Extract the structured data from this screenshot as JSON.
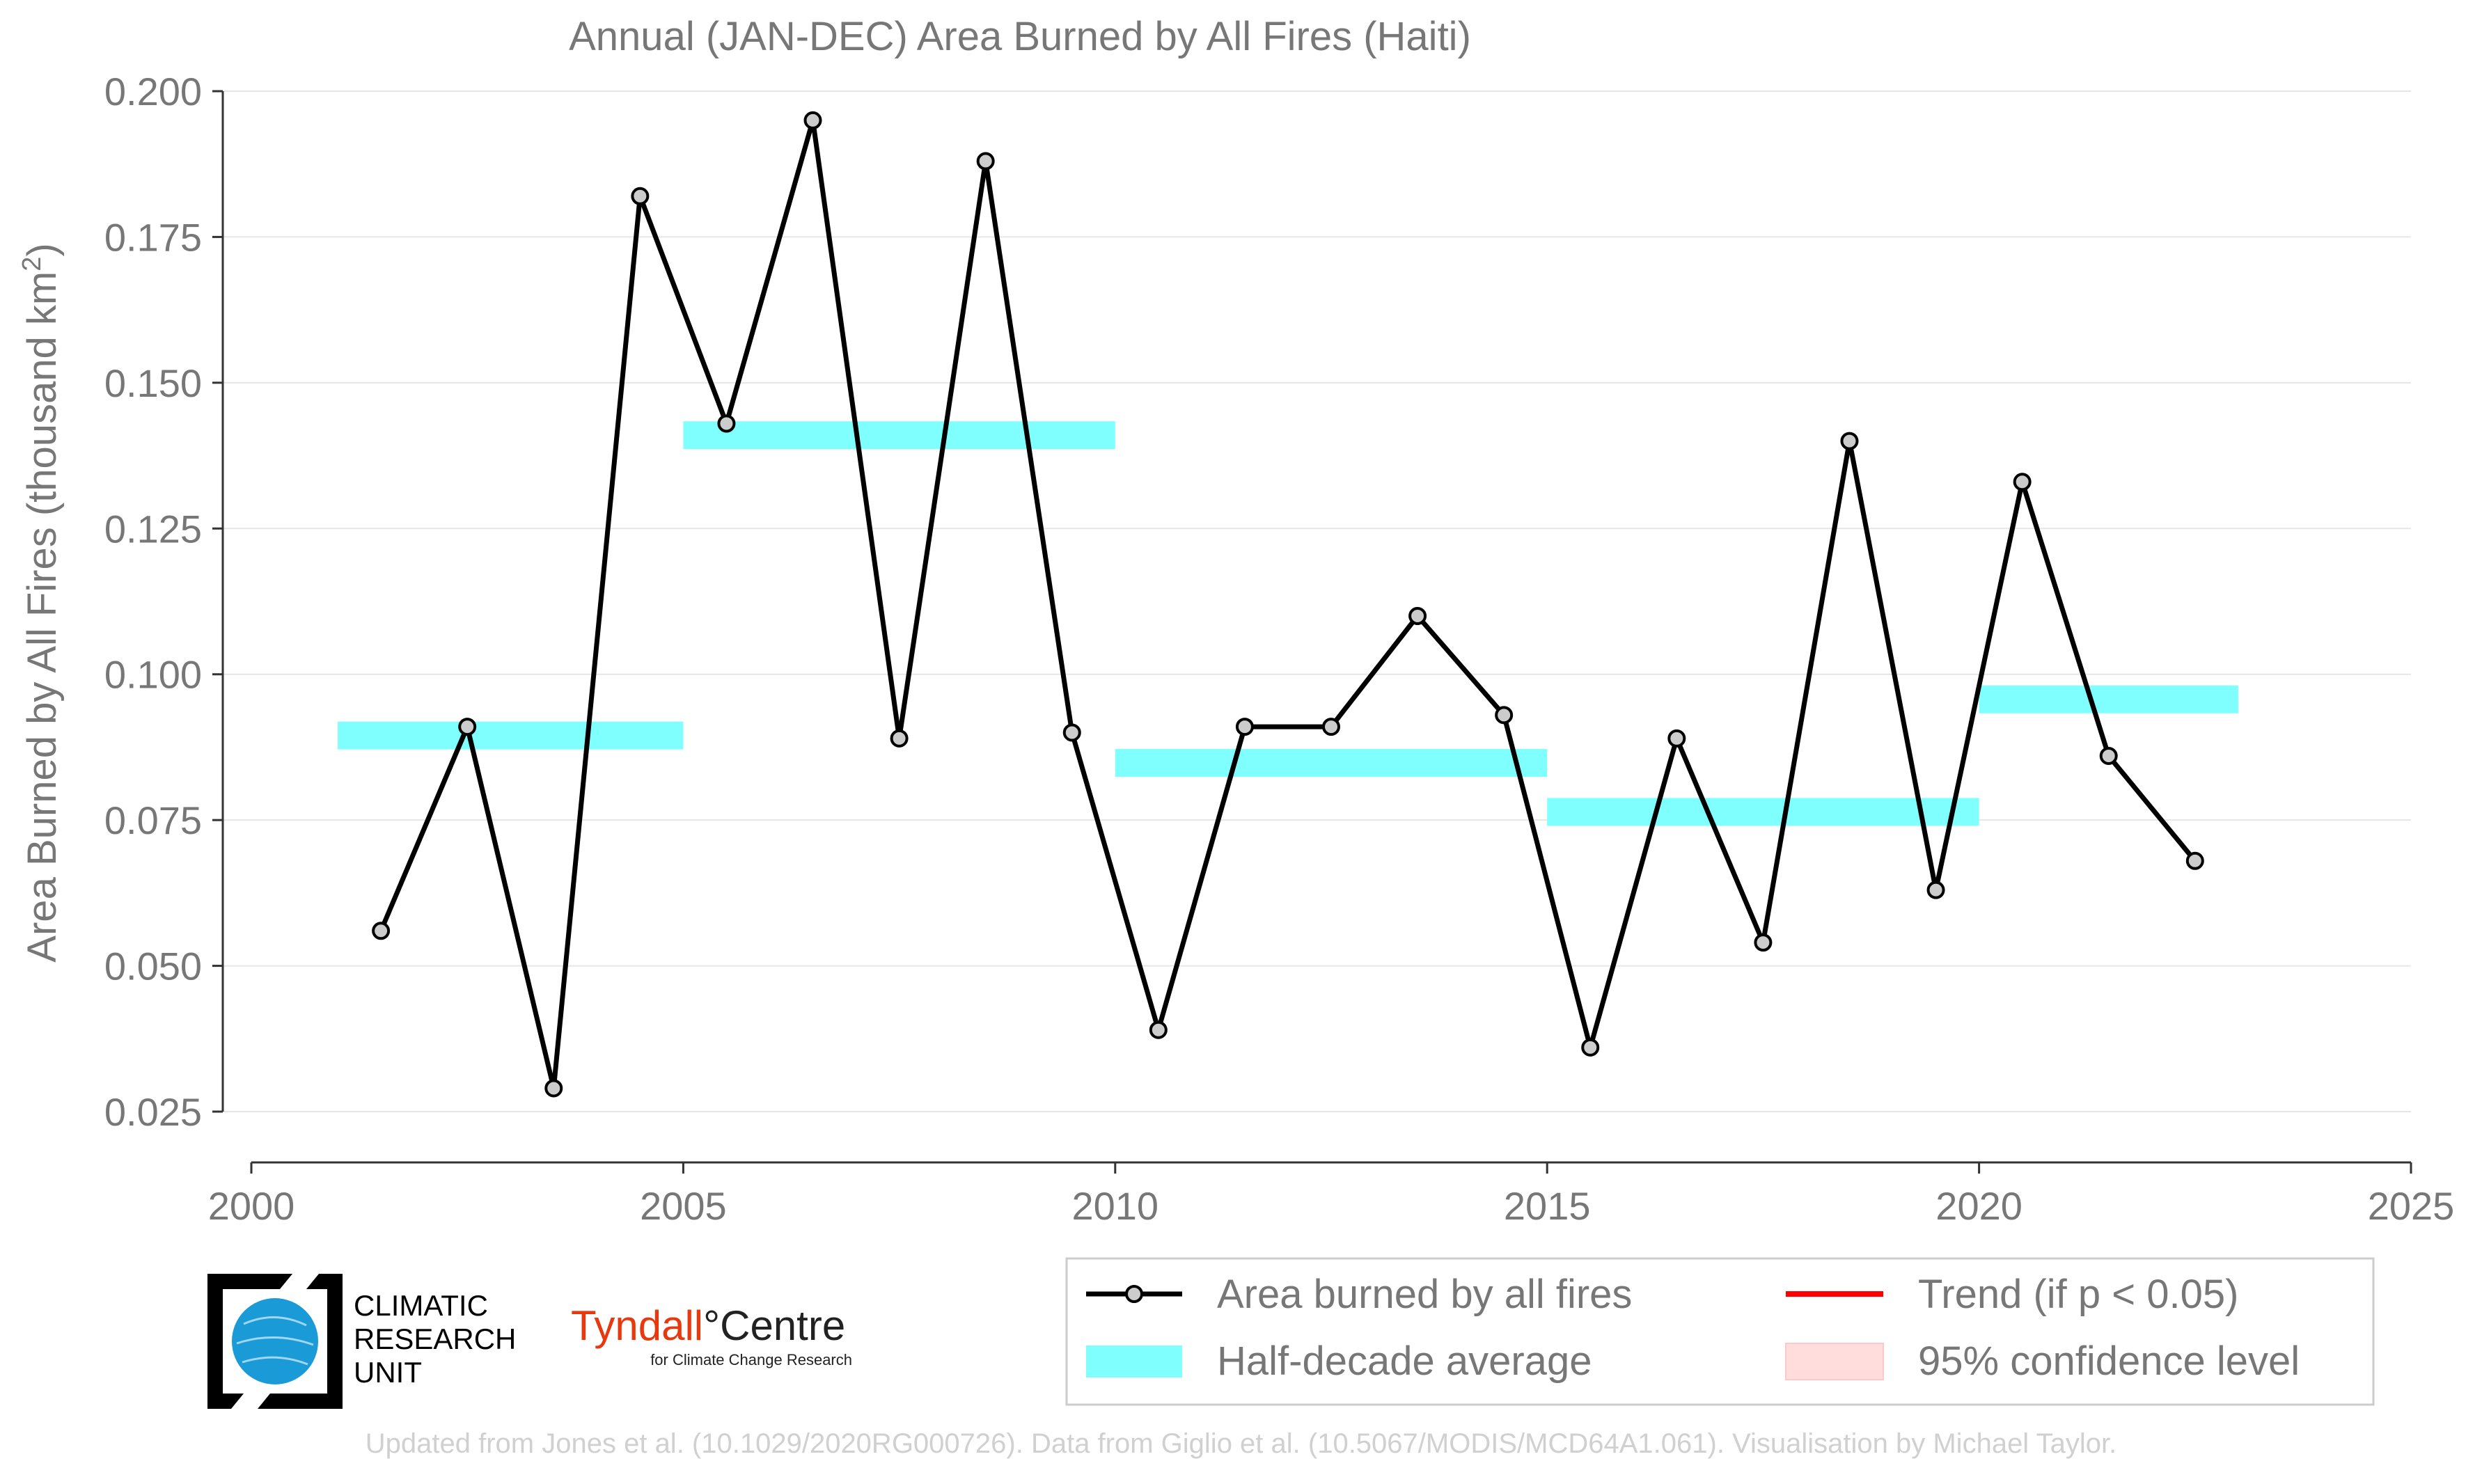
{
  "chart_data": {
    "type": "line",
    "title": "Annual (JAN-DEC) Area Burned by All Fires (Haiti)",
    "xlabel": "",
    "ylabel": "Area Burned by All Fires (thousand km",
    "ylabel_sup": "2",
    "ylabel_end": ")",
    "xlim": [
      2000,
      2025
    ],
    "ylim": [
      0.025,
      0.2
    ],
    "x_ticks": [
      2000,
      2005,
      2010,
      2015,
      2020,
      2025
    ],
    "x_tick_labels": [
      "2000",
      "2005",
      "2010",
      "2015",
      "2020",
      "2025"
    ],
    "y_ticks": [
      0.025,
      0.05,
      0.075,
      0.1,
      0.125,
      0.15,
      0.175,
      0.2
    ],
    "y_tick_labels": [
      "0.025",
      "0.050",
      "0.075",
      "0.100",
      "0.125",
      "0.150",
      "0.175",
      "0.200"
    ],
    "grid": "horizontal",
    "series": [
      {
        "name": "Area burned by all fires",
        "color": "#000000",
        "marker_fill": "#cccccc",
        "x": [
          2001.5,
          2002.5,
          2003.5,
          2004.5,
          2005.5,
          2006.5,
          2007.5,
          2008.5,
          2009.5,
          2010.5,
          2011.5,
          2012.5,
          2013.5,
          2014.5,
          2015.5,
          2016.5,
          2017.5,
          2018.5,
          2019.5,
          2020.5,
          2021.5,
          2022.5
        ],
        "values": [
          0.056,
          0.091,
          0.029,
          0.182,
          0.143,
          0.195,
          0.089,
          0.188,
          0.09,
          0.039,
          0.091,
          0.091,
          0.11,
          0.093,
          0.036,
          0.089,
          0.054,
          0.14,
          0.063,
          0.133,
          0.086,
          0.068
        ]
      }
    ],
    "half_decade_average": {
      "name": "Half-decade average",
      "color": "#80ffff",
      "segments": [
        {
          "x_start": 2001,
          "x_end": 2005,
          "value": 0.0895
        },
        {
          "x_start": 2005,
          "x_end": 2010,
          "value": 0.141
        },
        {
          "x_start": 2010,
          "x_end": 2015,
          "value": 0.0848
        },
        {
          "x_start": 2015,
          "x_end": 2020,
          "value": 0.0764
        },
        {
          "x_start": 2020,
          "x_end": 2023,
          "value": 0.0957
        }
      ]
    },
    "legend": {
      "position": "bottom-right",
      "entries": [
        {
          "label": "Area burned by all fires",
          "kind": "line-marker",
          "color": "#000000"
        },
        {
          "label": "Trend (if p < 0.05)",
          "kind": "line",
          "color": "#ff0000"
        },
        {
          "label": "Half-decade average",
          "kind": "band",
          "color": "#80ffff"
        },
        {
          "label": "95% confidence level",
          "kind": "band",
          "color": "#ffdddd"
        }
      ]
    }
  },
  "logos": {
    "cru_lines": [
      "CLIMATIC",
      "RESEARCH",
      "UNIT"
    ],
    "tyndall_name": "Tyndall",
    "tyndall_degree": "°",
    "tyndall_centre": "Centre",
    "tyndall_sub": "for Climate Change Research"
  },
  "footer": "Updated from Jones et al. (10.1029/2020RG000726). Data from Giglio et al. (10.5067/MODIS/MCD64A1.061). Visualisation by Michael Taylor.",
  "colors": {
    "axis_text": "#777777",
    "grid": "#e6e6e6",
    "cru_blue": "#1a9ad6",
    "tyndall_red": "#e8380d"
  }
}
